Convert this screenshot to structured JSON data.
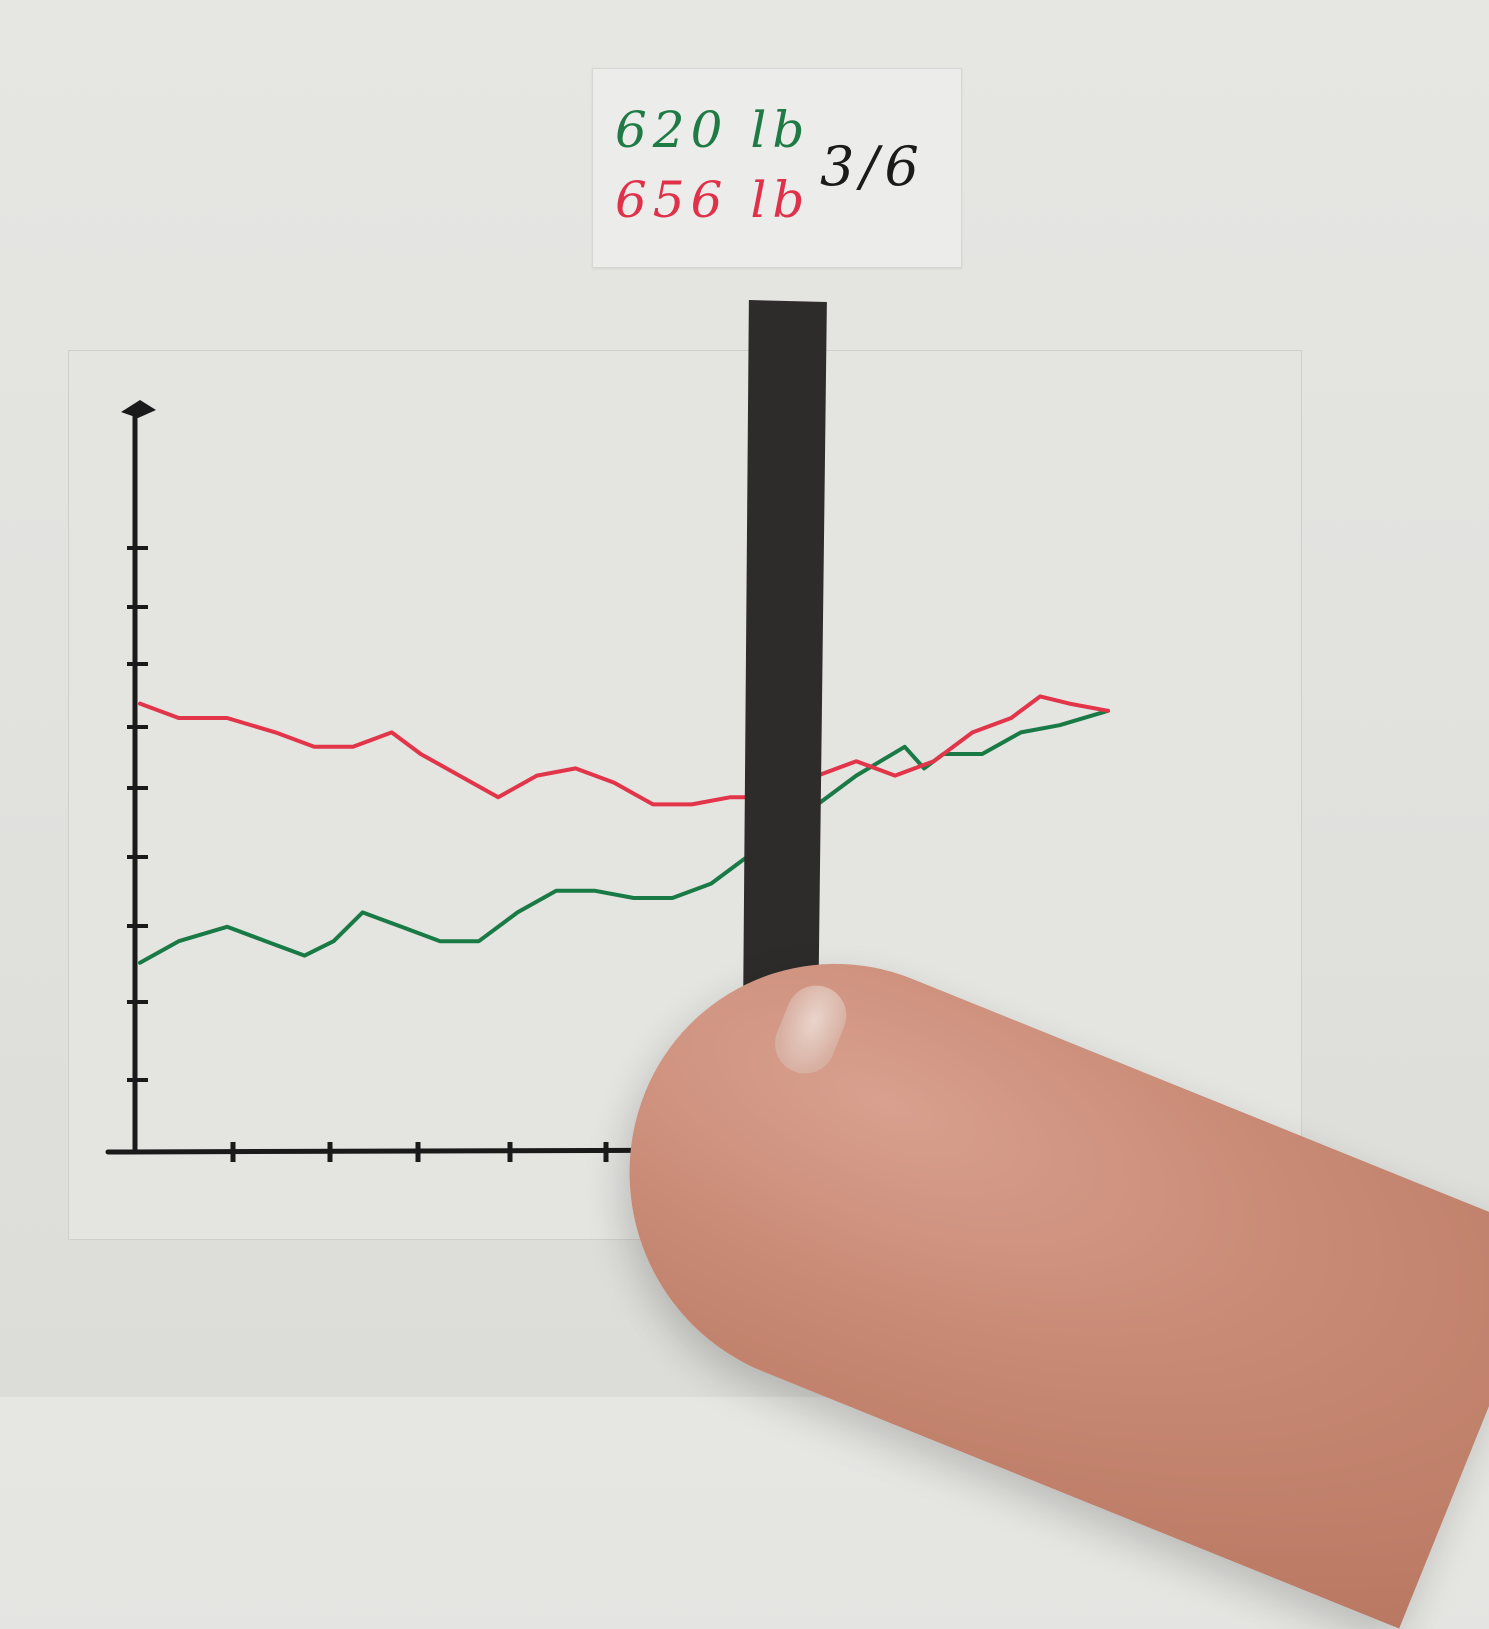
{
  "header": {
    "green_value": "620 lb",
    "red_value": "656 lb",
    "progress": "3/6"
  },
  "colors": {
    "green": "#1a7a45",
    "red": "#e23549",
    "axis": "#1a1a1a",
    "slider": "#2d2c2b"
  },
  "chart_data": {
    "type": "line",
    "title": "",
    "xlabel": "",
    "ylabel": "",
    "x_ticks": 6,
    "y_ticks": 9,
    "xlim": [
      0,
      10
    ],
    "ylim": [
      0,
      10
    ],
    "grid": false,
    "legend": "none",
    "slider_x": 6.6,
    "series": [
      {
        "color": "green",
        "x": [
          0,
          0.4,
          0.9,
          1.3,
          1.7,
          2.0,
          2.3,
          2.7,
          3.1,
          3.5,
          3.9,
          4.3,
          4.7,
          5.1,
          5.5,
          5.9,
          6.2,
          6.6,
          7.0,
          7.4,
          7.9,
          8.1,
          8.3,
          8.7,
          9.1,
          9.5,
          10.0
        ],
        "y": [
          2.6,
          2.9,
          3.1,
          2.9,
          2.7,
          2.9,
          3.3,
          3.1,
          2.9,
          2.9,
          3.3,
          3.6,
          3.6,
          3.5,
          3.5,
          3.7,
          4.0,
          4.4,
          4.8,
          5.2,
          5.6,
          5.3,
          5.5,
          5.5,
          5.8,
          5.9,
          6.1
        ]
      },
      {
        "color": "red",
        "x": [
          0,
          0.4,
          0.9,
          1.4,
          1.8,
          2.2,
          2.6,
          2.9,
          3.3,
          3.7,
          4.1,
          4.5,
          4.9,
          5.3,
          5.7,
          6.1,
          6.6,
          7.0,
          7.4,
          7.8,
          8.2,
          8.6,
          9.0,
          9.3,
          9.6,
          10.0
        ],
        "y": [
          6.2,
          6.0,
          6.0,
          5.8,
          5.6,
          5.6,
          5.8,
          5.5,
          5.2,
          4.9,
          5.2,
          5.3,
          5.1,
          4.8,
          4.8,
          4.9,
          4.9,
          5.2,
          5.4,
          5.2,
          5.4,
          5.8,
          6.0,
          6.3,
          6.2,
          6.1
        ]
      }
    ]
  }
}
